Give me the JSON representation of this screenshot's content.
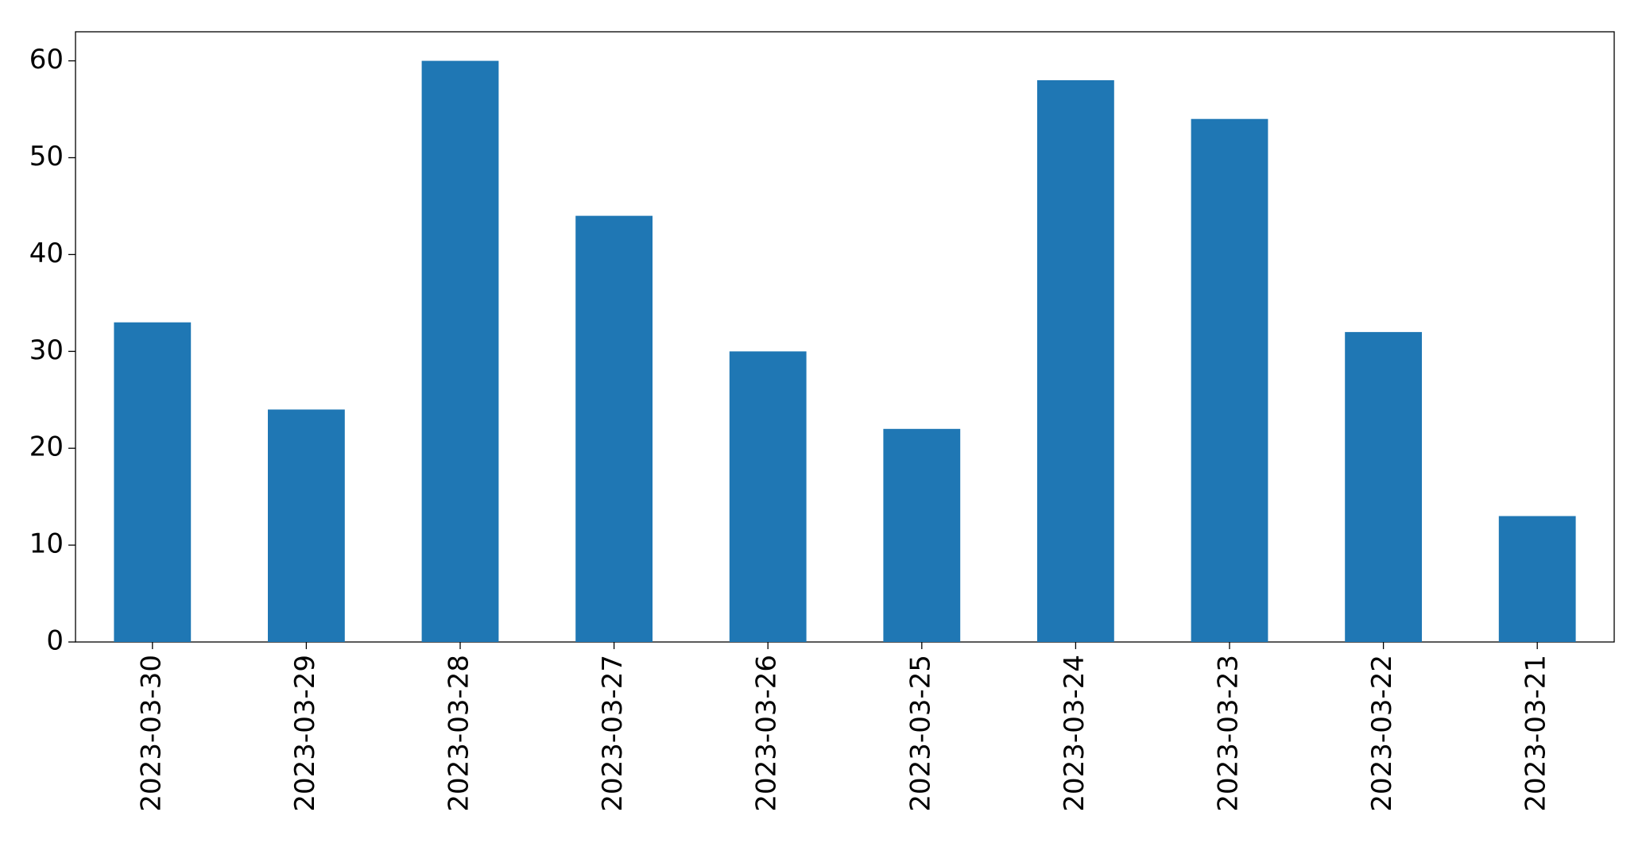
{
  "chart_data": {
    "type": "bar",
    "categories": [
      "2023-03-30",
      "2023-03-29",
      "2023-03-28",
      "2023-03-27",
      "2023-03-26",
      "2023-03-25",
      "2023-03-24",
      "2023-03-23",
      "2023-03-22",
      "2023-03-21"
    ],
    "values": [
      33,
      24,
      60,
      44,
      30,
      22,
      58,
      54,
      32,
      13
    ],
    "color": "#1f77b4",
    "ylim": [
      0,
      63
    ],
    "yticks": [
      0,
      10,
      20,
      30,
      40,
      50,
      60
    ],
    "grid": false
  }
}
